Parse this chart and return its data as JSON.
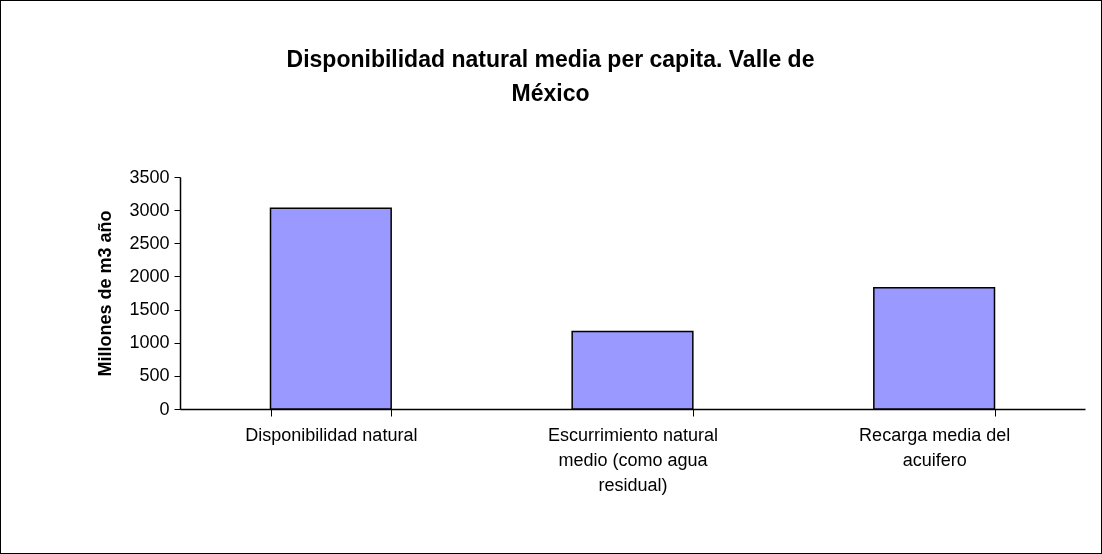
{
  "chart_data": {
    "type": "bar",
    "title": "Disponibilidad natural media per capita. Valle de México",
    "ylabel": "Millones de m3 año",
    "categories": [
      "Disponibilidad natural",
      "Escurrimiento natural medio (como agua residual)",
      "Recarga media del acuifero"
    ],
    "values": [
      3030,
      1170,
      1830
    ],
    "color": "#9999ff",
    "ylim": [
      0,
      3500
    ],
    "yticks": [
      0,
      500,
      1000,
      1500,
      2000,
      2500,
      3000,
      3500
    ]
  }
}
